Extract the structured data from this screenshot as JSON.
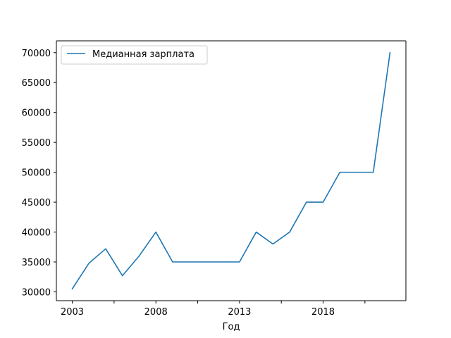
{
  "chart_data": {
    "type": "line",
    "title": "",
    "xlabel": "Год",
    "ylabel": "",
    "x": [
      2003,
      2004,
      2005,
      2006,
      2007,
      2008,
      2009,
      2010,
      2011,
      2012,
      2013,
      2014,
      2015,
      2016,
      2017,
      2018,
      2019,
      2020,
      2021,
      2022
    ],
    "series": [
      {
        "name": "Медианная зарплата",
        "color": "#1f77b4",
        "values": [
          30500,
          34800,
          37200,
          32700,
          36000,
          40000,
          35000,
          35000,
          35000,
          35000,
          35000,
          40000,
          38000,
          40000,
          45000,
          45000,
          50000,
          50000,
          50000,
          70000
        ]
      }
    ],
    "xlim": [
      2002.05,
      2022.95
    ],
    "ylim": [
      28525,
      71975
    ],
    "xticks": [
      2003,
      2005.5,
      2008,
      2010.5,
      2013,
      2015.5,
      2018,
      2020.5
    ],
    "xtick_labels": [
      "2003",
      "",
      "2008",
      "",
      "2013",
      "",
      "2018",
      ""
    ],
    "yticks": [
      30000,
      35000,
      40000,
      45000,
      50000,
      55000,
      60000,
      65000,
      70000
    ],
    "ytick_labels": [
      "30000",
      "35000",
      "40000",
      "45000",
      "50000",
      "55000",
      "60000",
      "65000",
      "70000"
    ],
    "legend": "top-left",
    "grid": false
  }
}
